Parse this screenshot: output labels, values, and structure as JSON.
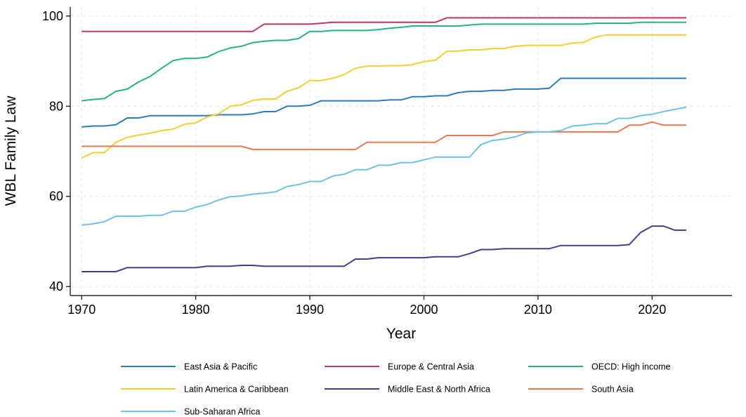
{
  "chart_data": {
    "type": "line",
    "title": "",
    "xlabel": "Year",
    "ylabel": "WBL Family Law",
    "xlim": [
      1969,
      2027
    ],
    "ylim": [
      38,
      102
    ],
    "xticks": [
      1970,
      1980,
      1990,
      2000,
      2010,
      2020
    ],
    "yticks": [
      40,
      60,
      80,
      100
    ],
    "grid": true,
    "legend_position": "bottom",
    "x": [
      1970,
      1971,
      1972,
      1973,
      1974,
      1975,
      1976,
      1977,
      1978,
      1979,
      1980,
      1981,
      1982,
      1983,
      1984,
      1985,
      1986,
      1987,
      1988,
      1989,
      1990,
      1991,
      1992,
      1993,
      1994,
      1995,
      1996,
      1997,
      1998,
      1999,
      2000,
      2001,
      2002,
      2003,
      2004,
      2005,
      2006,
      2007,
      2008,
      2009,
      2010,
      2011,
      2012,
      2013,
      2014,
      2015,
      2016,
      2017,
      2018,
      2019,
      2020,
      2021,
      2022,
      2023
    ],
    "series": [
      {
        "name": "East Asia & Pacific",
        "color": "#2b7bc1",
        "values": [
          75.4,
          75.6,
          75.6,
          75.9,
          77.4,
          77.4,
          77.9,
          77.9,
          77.9,
          77.9,
          77.9,
          77.9,
          78.1,
          78.1,
          78.1,
          78.3,
          78.8,
          78.8,
          80.0,
          80.0,
          80.2,
          81.2,
          81.2,
          81.2,
          81.2,
          81.2,
          81.2,
          81.4,
          81.4,
          82.1,
          82.1,
          82.3,
          82.3,
          83.0,
          83.3,
          83.3,
          83.5,
          83.5,
          83.8,
          83.8,
          83.8,
          84.0,
          86.2,
          86.2,
          86.2,
          86.2,
          86.2,
          86.2,
          86.2,
          86.2,
          86.2,
          86.2,
          86.2,
          86.2
        ]
      },
      {
        "name": "Europe & Central Asia",
        "color": "#c7346b",
        "values": [
          96.6,
          96.6,
          96.6,
          96.6,
          96.6,
          96.6,
          96.6,
          96.6,
          96.6,
          96.6,
          96.6,
          96.6,
          96.6,
          96.6,
          96.6,
          96.6,
          98.2,
          98.2,
          98.2,
          98.2,
          98.2,
          98.4,
          98.6,
          98.6,
          98.6,
          98.6,
          98.6,
          98.6,
          98.6,
          98.6,
          98.6,
          98.6,
          99.6,
          99.6,
          99.6,
          99.6,
          99.6,
          99.6,
          99.6,
          99.6,
          99.6,
          99.6,
          99.6,
          99.6,
          99.6,
          99.6,
          99.6,
          99.6,
          99.6,
          99.6,
          99.6,
          99.6,
          99.6,
          99.6
        ]
      },
      {
        "name": "OECD: High income",
        "color": "#20b487",
        "values": [
          81.2,
          81.5,
          81.7,
          83.3,
          83.8,
          85.4,
          86.6,
          88.4,
          90.1,
          90.6,
          90.6,
          90.9,
          92.1,
          92.9,
          93.3,
          94.1,
          94.4,
          94.6,
          94.6,
          95.0,
          96.6,
          96.6,
          96.8,
          96.8,
          96.8,
          96.8,
          97.0,
          97.3,
          97.5,
          97.8,
          97.8,
          97.8,
          97.8,
          97.8,
          98.0,
          98.2,
          98.2,
          98.2,
          98.2,
          98.2,
          98.2,
          98.2,
          98.2,
          98.2,
          98.2,
          98.4,
          98.4,
          98.4,
          98.4,
          98.6,
          98.6,
          98.6,
          98.6,
          98.6
        ]
      },
      {
        "name": "Latin America & Caribbean",
        "color": "#f5cf2f",
        "values": [
          68.5,
          69.7,
          69.7,
          72.0,
          73.1,
          73.6,
          74.0,
          74.6,
          74.9,
          76.0,
          76.3,
          77.6,
          78.3,
          80.0,
          80.3,
          81.3,
          81.6,
          81.6,
          83.3,
          84.1,
          85.7,
          85.7,
          86.2,
          87.0,
          88.4,
          88.9,
          88.9,
          89.0,
          89.0,
          89.2,
          89.9,
          90.2,
          92.2,
          92.2,
          92.5,
          92.5,
          92.8,
          92.8,
          93.3,
          93.5,
          93.5,
          93.5,
          93.5,
          94.0,
          94.2,
          95.3,
          95.8,
          95.8,
          95.8,
          95.8,
          95.8,
          95.8,
          95.8,
          95.8
        ]
      },
      {
        "name": "Middle East & North Africa",
        "color": "#4b3a8e",
        "values": [
          43.3,
          43.3,
          43.3,
          43.3,
          44.2,
          44.2,
          44.2,
          44.2,
          44.2,
          44.2,
          44.2,
          44.5,
          44.5,
          44.5,
          44.7,
          44.7,
          44.5,
          44.5,
          44.5,
          44.5,
          44.5,
          44.5,
          44.5,
          44.5,
          46.1,
          46.1,
          46.4,
          46.4,
          46.4,
          46.4,
          46.4,
          46.6,
          46.6,
          46.6,
          47.3,
          48.2,
          48.2,
          48.4,
          48.4,
          48.4,
          48.4,
          48.4,
          49.1,
          49.1,
          49.1,
          49.1,
          49.1,
          49.1,
          49.3,
          52.0,
          53.4,
          53.4,
          52.5,
          52.5
        ]
      },
      {
        "name": "South Asia",
        "color": "#ec7750",
        "values": [
          71.1,
          71.1,
          71.1,
          71.1,
          71.1,
          71.1,
          71.1,
          71.1,
          71.1,
          71.1,
          71.1,
          71.1,
          71.1,
          71.1,
          71.1,
          70.4,
          70.4,
          70.4,
          70.4,
          70.4,
          70.4,
          70.4,
          70.4,
          70.4,
          70.4,
          72.0,
          72.0,
          72.0,
          72.0,
          72.0,
          72.0,
          72.0,
          73.5,
          73.5,
          73.5,
          73.5,
          73.5,
          74.3,
          74.3,
          74.3,
          74.3,
          74.3,
          74.3,
          74.3,
          74.3,
          74.3,
          74.3,
          74.3,
          75.8,
          75.8,
          76.5,
          75.8,
          75.8,
          75.8
        ]
      },
      {
        "name": "Sub-Saharan Africa",
        "color": "#6cc3e8",
        "values": [
          53.6,
          53.9,
          54.4,
          55.6,
          55.6,
          55.6,
          55.8,
          55.8,
          56.7,
          56.7,
          57.6,
          58.2,
          59.2,
          59.9,
          60.1,
          60.5,
          60.7,
          61.0,
          62.2,
          62.6,
          63.3,
          63.3,
          64.5,
          64.9,
          65.9,
          65.9,
          66.9,
          66.9,
          67.5,
          67.5,
          68.1,
          68.7,
          68.7,
          68.7,
          68.7,
          71.5,
          72.4,
          72.7,
          73.2,
          74.1,
          74.3,
          74.3,
          74.6,
          75.6,
          75.8,
          76.1,
          76.1,
          77.3,
          77.3,
          77.9,
          78.2,
          78.8,
          79.3,
          79.8
        ]
      }
    ]
  }
}
